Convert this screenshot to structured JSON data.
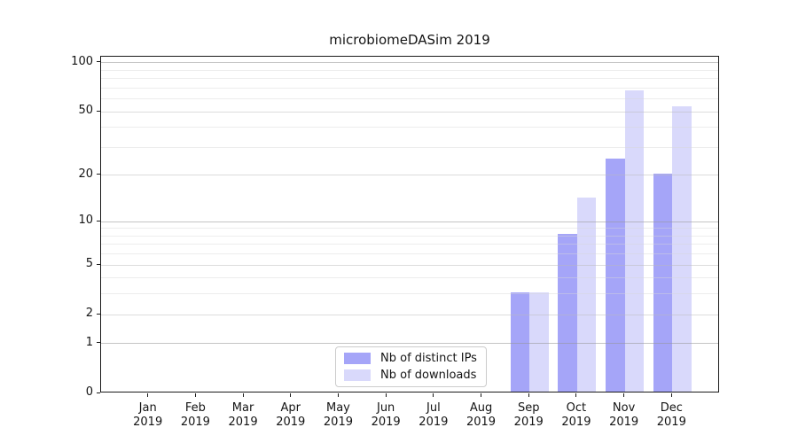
{
  "chart_data": {
    "type": "bar",
    "title": "microbiomeDASim 2019",
    "categories": [
      "Jan 2019",
      "Feb 2019",
      "Mar 2019",
      "Apr 2019",
      "May 2019",
      "Jun 2019",
      "Jul 2019",
      "Aug 2019",
      "Sep 2019",
      "Oct 2019",
      "Nov 2019",
      "Dec 2019"
    ],
    "series": [
      {
        "key": "distinct-ips",
        "name": "Nb of distinct IPs",
        "color": "#a5a5f8",
        "values": [
          0,
          0,
          0,
          0,
          0,
          0,
          0,
          0,
          3,
          8,
          25,
          20
        ]
      },
      {
        "key": "downloads",
        "name": "Nb of downloads",
        "color": "#d9d9fb",
        "values": [
          0,
          0,
          0,
          0,
          0,
          0,
          0,
          0,
          3,
          14,
          66,
          53
        ]
      }
    ],
    "xlabel": "",
    "ylabel": "",
    "yscale": "log1p",
    "yticks": [
      100,
      50,
      20,
      10,
      5,
      2,
      1,
      0
    ],
    "minor_gridlines": [
      3,
      4,
      6,
      7,
      8,
      9,
      30,
      40,
      60,
      70,
      80,
      90
    ],
    "major_gridlines": [
      1,
      10,
      100
    ],
    "ylim": [
      0,
      109
    ],
    "grid": true,
    "legend_position": "lower center",
    "bar_slot_fraction": 0.8
  }
}
